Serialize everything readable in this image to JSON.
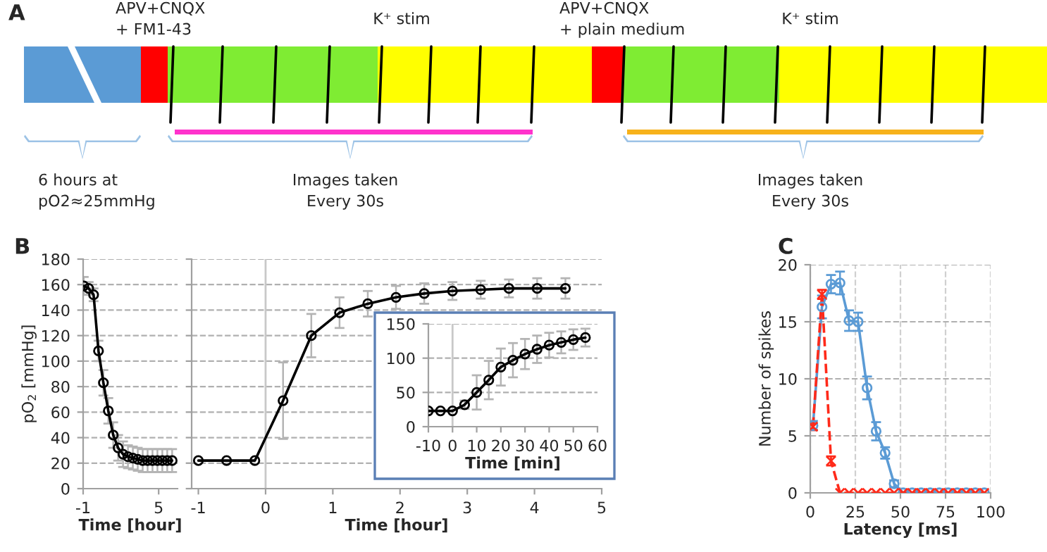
{
  "chart_data": [
    {
      "type": "other",
      "title": "A",
      "annotations": [
        "APV+CNQX\n+ FM1-43",
        "K⁺ stim",
        "APV+CNQX\n+ plain medium",
        "K⁺ stim",
        "6 hours at\npO2≈25mmHg",
        "Images taken\nEvery 30s",
        "Images taken\nEvery 30s"
      ]
    },
    {
      "type": "line",
      "title": "B",
      "xlabel": "Time [hour]",
      "ylabel": "pO$_{2}$ [mmHg]",
      "xlim": [
        -1,
        6.5
      ],
      "xticks": [
        -1,
        5
      ],
      "ylim": [
        0,
        180
      ],
      "yticks": [
        0,
        20,
        40,
        60,
        80,
        100,
        120,
        140,
        160,
        180
      ],
      "grid": "y",
      "marker": "circle",
      "line_style": "solid",
      "series": [
        {
          "color": "#000000",
          "x": [
            -0.95,
            -0.56,
            -0.17,
            0.22,
            0.61,
            1.0,
            1.39,
            1.78,
            2.17,
            2.56,
            2.95,
            3.34,
            3.73,
            4.12,
            4.51,
            4.9,
            5.29,
            5.68,
            6.07
          ],
          "values": [
            159,
            157,
            152,
            108,
            83,
            61,
            42,
            32,
            27,
            25,
            24,
            23,
            22,
            22,
            22,
            22,
            22,
            22,
            22
          ],
          "errors": [
            7,
            5,
            5,
            8,
            10,
            10,
            10,
            10,
            10,
            9,
            9,
            9,
            9,
            9,
            9,
            9,
            9,
            9,
            9
          ]
        }
      ]
    },
    {
      "type": "line",
      "xlabel": "Time [hour]",
      "xlim": [
        -1.1,
        5
      ],
      "xticks": [
        -1,
        0,
        1,
        2,
        3,
        4,
        5
      ],
      "ylim": [
        0,
        180
      ],
      "yticks": [
        0,
        20,
        40,
        60,
        80,
        100,
        120,
        140,
        160,
        180
      ],
      "grid": "y",
      "marker": "circle",
      "line_style": "solid",
      "tick_labels": "x",
      "ref_lines": [
        {
          "axis": "x",
          "value": 0,
          "color": "#c8c8c8"
        }
      ],
      "series": [
        {
          "color": "#000000",
          "x": [
            -1.0,
            -0.58,
            -0.16,
            0.26,
            0.68,
            1.1,
            1.52,
            1.94,
            2.36,
            2.78,
            3.2,
            3.62,
            4.04,
            4.46
          ],
          "values": [
            22,
            22,
            22,
            69,
            120,
            138,
            145,
            150,
            153,
            155,
            156,
            157,
            157,
            157
          ],
          "errors": [
            null,
            null,
            null,
            30,
            17,
            12,
            10,
            9,
            8,
            7,
            7,
            7,
            8,
            8
          ]
        }
      ]
    },
    {
      "type": "line",
      "xlabel": "Time [min]",
      "xlim": [
        -10,
        60
      ],
      "xticks": [
        -10,
        0,
        10,
        20,
        30,
        40,
        50,
        60
      ],
      "ylim": [
        0,
        150
      ],
      "yticks": [
        0,
        50,
        100,
        150
      ],
      "grid": "y",
      "marker": "circle",
      "line_style": "solid",
      "ref_lines": [
        {
          "axis": "x",
          "value": 0,
          "color": "#c8c8c8"
        }
      ],
      "series": [
        {
          "color": "#000000",
          "x": [
            -10,
            -5,
            0,
            5,
            10,
            15,
            20,
            25,
            30,
            35,
            40,
            45,
            50,
            55
          ],
          "values": [
            23,
            23,
            23,
            32,
            50,
            68,
            87,
            97,
            106,
            113,
            119,
            123,
            127,
            130
          ],
          "errors": [
            null,
            null,
            null,
            6,
            25,
            28,
            27,
            25,
            22,
            20,
            18,
            16,
            15,
            13
          ]
        }
      ]
    },
    {
      "type": "line",
      "title": "C",
      "xlabel": "Latency [ms]",
      "ylabel": "Number of spikes",
      "xlim": [
        0,
        100
      ],
      "xticks": [
        0,
        25,
        50,
        75,
        100
      ],
      "ylim": [
        0,
        20
      ],
      "yticks": [
        0,
        5,
        10,
        15,
        20
      ],
      "grid": true,
      "x": [
        1.5,
        6.5,
        11.5,
        16.5,
        21.5,
        26.5,
        31.5,
        36.5,
        41.5,
        46.5,
        51.5,
        56.5,
        61.5,
        66.5,
        71.5,
        76.5,
        81.5,
        86.5,
        91.5,
        96.5
      ],
      "series": [
        {
          "color": "#5b9bd5",
          "marker": "circle",
          "line_style": "solid",
          "values": [
            5.9,
            16.3,
            18.3,
            18.4,
            15.1,
            15.0,
            9.2,
            5.4,
            3.5,
            0.8,
            0,
            0,
            0,
            0,
            0,
            0,
            0,
            0,
            0,
            0
          ],
          "errors": [
            0.4,
            1,
            0.8,
            1,
            0.9,
            0.8,
            1,
            0.8,
            0.5,
            0.3,
            null,
            null,
            null,
            null,
            null,
            null,
            null,
            null,
            null,
            null
          ]
        },
        {
          "color": "#ff2a1a",
          "marker": "cross",
          "line_style": "dashed",
          "values": [
            5.8,
            17.4,
            2.8,
            0,
            0,
            0,
            0,
            0,
            0,
            0,
            0,
            0,
            0,
            0,
            0,
            0,
            0,
            0,
            0,
            0
          ],
          "errors": [
            0.3,
            0.4,
            0.4,
            null,
            null,
            null,
            null,
            null,
            null,
            null,
            null,
            null,
            null,
            null,
            null,
            null,
            null,
            null,
            null,
            null
          ]
        }
      ]
    }
  ]
}
